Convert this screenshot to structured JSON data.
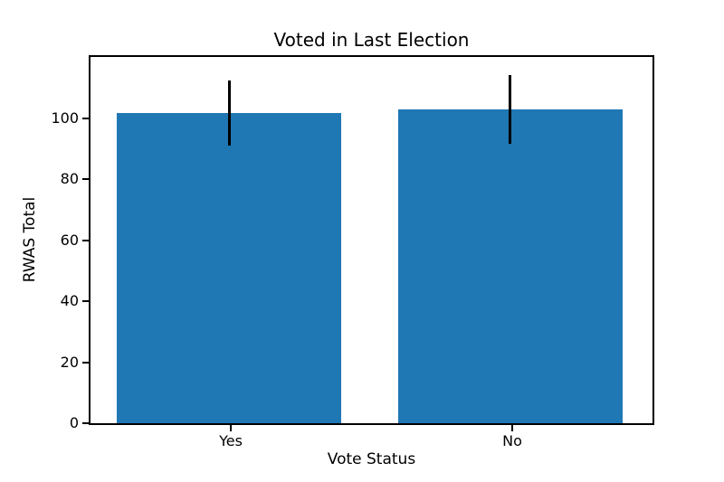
{
  "chart_data": {
    "type": "bar",
    "title": "Voted in Last Election",
    "xlabel": "Vote Status",
    "ylabel": "RWAS Total",
    "categories": [
      "Yes",
      "No"
    ],
    "values": [
      101.5,
      102.9
    ],
    "errors": [
      10.7,
      11.2
    ],
    "yticks": [
      "0",
      "20",
      "40",
      "60",
      "80",
      "100"
    ],
    "ytick_values": [
      0,
      20,
      40,
      60,
      80,
      100
    ],
    "ylim": [
      0,
      120
    ],
    "bar_width_fraction": 0.8,
    "bar_color": "#1f77b4",
    "error_bar_color": "#000000",
    "legend": "none",
    "grid": "off"
  }
}
